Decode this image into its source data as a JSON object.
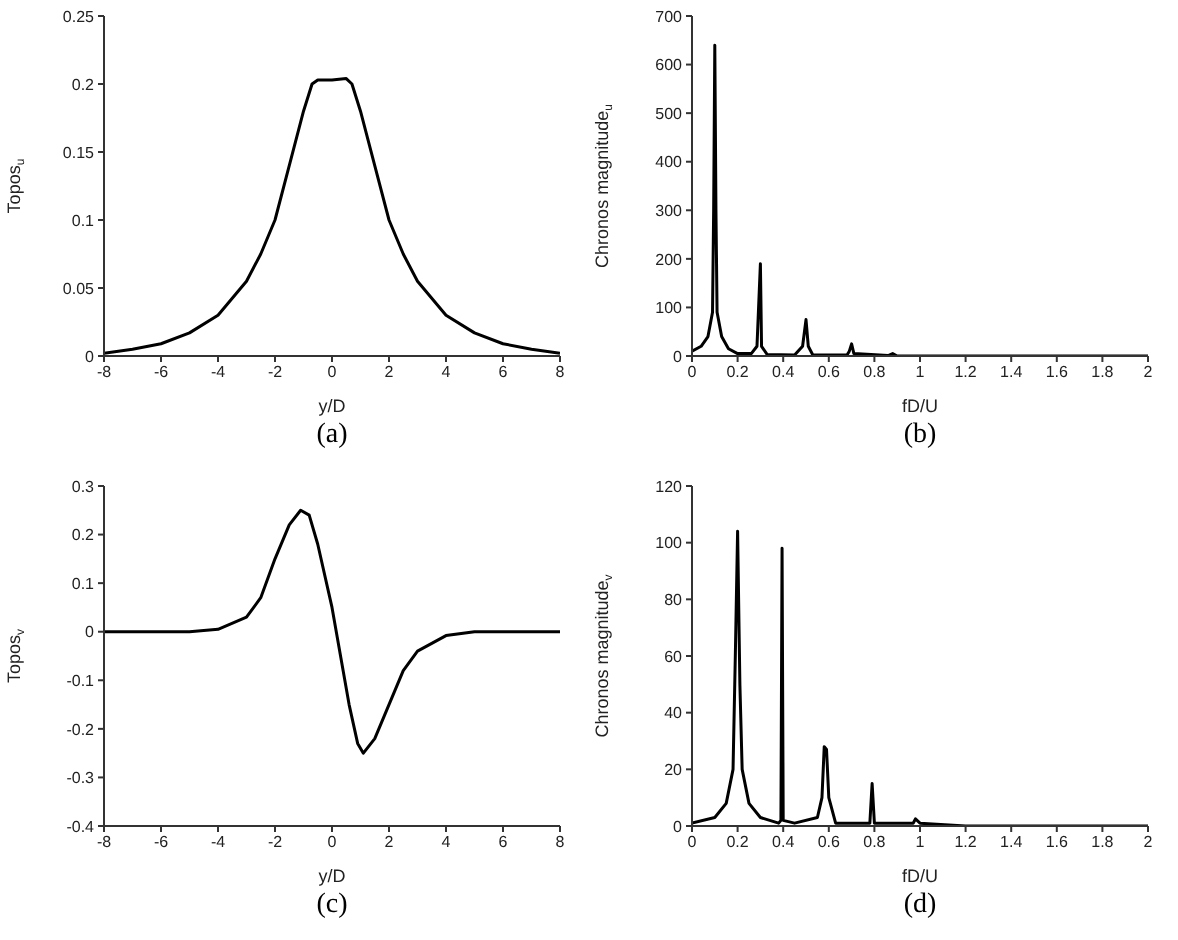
{
  "chart_data": [
    {
      "type": "line",
      "xlabel": "y/D",
      "ylabel": "Topos$_{u}$",
      "annotations": [
        "(a)"
      ],
      "xlim": [
        -8,
        8
      ],
      "xticks": [
        -8,
        -6,
        -4,
        -2,
        0,
        2,
        4,
        6,
        8
      ],
      "ylim": [
        0,
        0.25
      ],
      "yticks": [
        0,
        0.05,
        0.1,
        0.15,
        0.2,
        0.25
      ],
      "x": [
        -8,
        -7,
        -6,
        -5,
        -4,
        -3,
        -2.5,
        -2,
        -1.5,
        -1,
        -0.7,
        -0.5,
        0,
        0.5,
        0.7,
        1,
        1.5,
        2,
        2.5,
        3,
        4,
        5,
        6,
        7,
        8
      ],
      "series": [
        {
          "color": "#000000",
          "values": [
            0.002,
            0.005,
            0.009,
            0.017,
            0.03,
            0.055,
            0.075,
            0.1,
            0.14,
            0.18,
            0.2,
            0.203,
            0.203,
            0.204,
            0.2,
            0.18,
            0.14,
            0.1,
            0.075,
            0.055,
            0.03,
            0.017,
            0.009,
            0.005,
            0.002
          ]
        }
      ]
    },
    {
      "type": "line",
      "xlabel": "fD/U",
      "ylabel": "Chronos magnitude$_{u}$",
      "annotations": [
        "(b)"
      ],
      "xlim": [
        0,
        2
      ],
      "xticks": [
        0,
        0.2,
        0.4,
        0.6,
        0.8,
        1,
        1.2,
        1.4,
        1.6,
        1.8,
        2
      ],
      "ylim": [
        0,
        700
      ],
      "yticks": [
        0,
        100,
        200,
        300,
        400,
        500,
        600,
        700
      ],
      "x": [
        0,
        0.04,
        0.07,
        0.09,
        0.095,
        0.1,
        0.105,
        0.11,
        0.13,
        0.16,
        0.2,
        0.26,
        0.285,
        0.3,
        0.305,
        0.33,
        0.45,
        0.485,
        0.5,
        0.51,
        0.53,
        0.68,
        0.69,
        0.7,
        0.71,
        0.86,
        0.88,
        0.9,
        2
      ],
      "series": [
        {
          "color": "#000000",
          "values": [
            10,
            20,
            40,
            90,
            300,
            640,
            300,
            90,
            40,
            15,
            5,
            5,
            20,
            190,
            20,
            3,
            2,
            20,
            75,
            20,
            2,
            2,
            10,
            25,
            5,
            1,
            5,
            0,
            0
          ]
        }
      ]
    },
    {
      "type": "line",
      "xlabel": "y/D",
      "ylabel": "Topos$_{v}$",
      "annotations": [
        "(c)"
      ],
      "xlim": [
        -8,
        8
      ],
      "xticks": [
        -8,
        -6,
        -4,
        -2,
        0,
        2,
        4,
        6,
        8
      ],
      "ylim": [
        -0.4,
        0.3
      ],
      "yticks": [
        -0.4,
        -0.3,
        -0.2,
        -0.1,
        0,
        0.1,
        0.2,
        0.3
      ],
      "x": [
        -8,
        -5,
        -4,
        -3,
        -2.5,
        -2,
        -1.5,
        -1.1,
        -0.8,
        -0.5,
        0,
        0.3,
        0.6,
        0.9,
        1.1,
        1.5,
        2,
        2.5,
        3,
        4,
        5,
        8
      ],
      "series": [
        {
          "color": "#000000",
          "values": [
            0,
            0,
            0.005,
            0.03,
            0.07,
            0.15,
            0.22,
            0.25,
            0.24,
            0.18,
            0.05,
            -0.05,
            -0.15,
            -0.23,
            -0.25,
            -0.22,
            -0.15,
            -0.08,
            -0.04,
            -0.008,
            0,
            0
          ]
        }
      ]
    },
    {
      "type": "line",
      "xlabel": "fD/U",
      "ylabel": "Chronos magnitude$_{v}$",
      "annotations": [
        "(d)"
      ],
      "xlim": [
        0,
        2
      ],
      "xticks": [
        0,
        0.2,
        0.4,
        0.6,
        0.8,
        1,
        1.2,
        1.4,
        1.6,
        1.8,
        2
      ],
      "ylim": [
        0,
        120
      ],
      "yticks": [
        0,
        20,
        40,
        60,
        80,
        100,
        120
      ],
      "x": [
        0,
        0.1,
        0.15,
        0.18,
        0.19,
        0.2,
        0.21,
        0.22,
        0.25,
        0.3,
        0.38,
        0.39,
        0.395,
        0.4,
        0.45,
        0.55,
        0.57,
        0.58,
        0.59,
        0.6,
        0.63,
        0.78,
        0.79,
        0.8,
        0.97,
        0.98,
        1,
        1.2,
        2
      ],
      "series": [
        {
          "color": "#000000",
          "values": [
            1,
            3,
            8,
            20,
            60,
            104,
            50,
            20,
            8,
            3,
            1,
            2,
            98,
            2,
            1,
            3,
            10,
            28,
            27,
            10,
            1,
            1,
            15,
            1,
            1,
            2.5,
            1,
            0,
            0
          ]
        }
      ]
    }
  ]
}
